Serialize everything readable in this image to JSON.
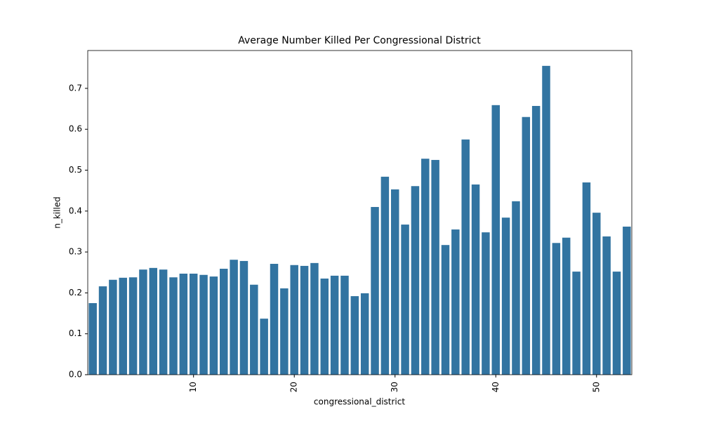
{
  "chart_data": {
    "type": "bar",
    "title": "Average Number Killed Per Congressional District",
    "xlabel": "congressional_district",
    "ylabel": "n_killed",
    "x": [
      0,
      1,
      2,
      3,
      4,
      5,
      6,
      7,
      8,
      9,
      10,
      11,
      12,
      13,
      14,
      15,
      16,
      17,
      18,
      19,
      20,
      21,
      22,
      23,
      24,
      25,
      26,
      27,
      28,
      29,
      30,
      31,
      32,
      33,
      34,
      35,
      36,
      37,
      38,
      39,
      40,
      41,
      42,
      43,
      44,
      45,
      46,
      47,
      48,
      49,
      50,
      51,
      52,
      53
    ],
    "values": [
      0.175,
      0.216,
      0.232,
      0.237,
      0.238,
      0.257,
      0.261,
      0.257,
      0.238,
      0.247,
      0.247,
      0.244,
      0.24,
      0.259,
      0.281,
      0.278,
      0.22,
      0.137,
      0.271,
      0.211,
      0.268,
      0.266,
      0.273,
      0.235,
      0.242,
      0.242,
      0.192,
      0.199,
      0.41,
      0.484,
      0.453,
      0.367,
      0.461,
      0.528,
      0.525,
      0.317,
      0.355,
      0.575,
      0.465,
      0.348,
      0.659,
      0.384,
      0.424,
      0.63,
      0.657,
      0.755,
      0.322,
      0.335,
      0.252,
      0.47,
      0.396,
      0.338,
      0.252,
      0.362
    ],
    "color": "#3274a1",
    "xlim": [
      -0.5,
      53.5
    ],
    "xticks": [
      10,
      20,
      30,
      40,
      50
    ],
    "ylim": [
      0,
      0.7925
    ],
    "yticks": [
      {
        "value": 0,
        "label": "0.0"
      },
      0.1,
      0.2,
      0.3,
      0.4,
      0.5,
      0.6,
      0.7
    ]
  }
}
